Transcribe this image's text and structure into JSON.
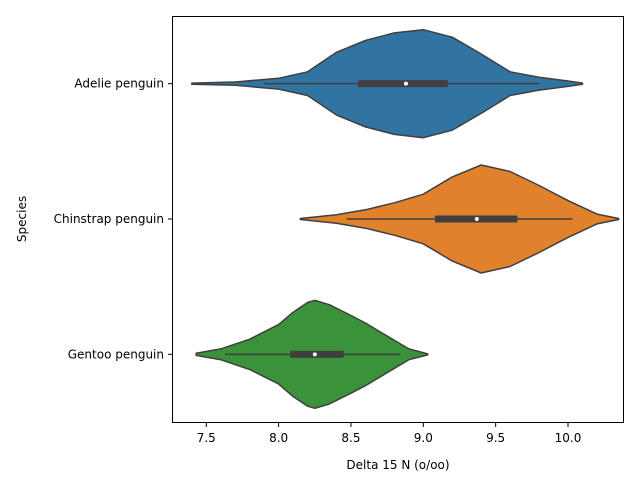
{
  "chart_data": {
    "type": "violin",
    "orientation": "horizontal",
    "xlabel": "Delta 15 N (o/oo)",
    "ylabel": "Species",
    "xlim": [
      7.27,
      10.38
    ],
    "x_ticks": [
      "7.5",
      "8.0",
      "8.5",
      "9.0",
      "9.5",
      "10.0"
    ],
    "categories": [
      "Adelie penguin",
      "Chinstrap penguin",
      "Gentoo penguin"
    ],
    "grid": false,
    "series": [
      {
        "category": "Adelie penguin",
        "color": "#3274a1",
        "range": [
          7.4,
          10.1
        ],
        "whisker": [
          7.9,
          9.8
        ],
        "quartiles": [
          8.55,
          9.17
        ],
        "median": 8.88,
        "density": [
          [
            7.4,
            0.01
          ],
          [
            7.7,
            0.03
          ],
          [
            8.0,
            0.1
          ],
          [
            8.2,
            0.22
          ],
          [
            8.4,
            0.58
          ],
          [
            8.6,
            0.8
          ],
          [
            8.8,
            0.94
          ],
          [
            9.0,
            1.0
          ],
          [
            9.2,
            0.86
          ],
          [
            9.4,
            0.55
          ],
          [
            9.6,
            0.22
          ],
          [
            9.8,
            0.12
          ],
          [
            10.0,
            0.05
          ],
          [
            10.1,
            0.01
          ]
        ]
      },
      {
        "category": "Chinstrap penguin",
        "color": "#e1812c",
        "range": [
          8.15,
          10.35
        ],
        "whisker": [
          8.47,
          10.03
        ],
        "quartiles": [
          9.08,
          9.65
        ],
        "median": 9.37,
        "density": [
          [
            8.15,
            0.01
          ],
          [
            8.4,
            0.08
          ],
          [
            8.6,
            0.17
          ],
          [
            8.8,
            0.3
          ],
          [
            9.0,
            0.46
          ],
          [
            9.2,
            0.78
          ],
          [
            9.4,
            1.0
          ],
          [
            9.6,
            0.88
          ],
          [
            9.8,
            0.62
          ],
          [
            10.0,
            0.34
          ],
          [
            10.2,
            0.09
          ],
          [
            10.35,
            0.01
          ]
        ]
      },
      {
        "category": "Gentoo penguin",
        "color": "#3a923a",
        "range": [
          7.43,
          9.03
        ],
        "whisker": [
          7.63,
          8.84
        ],
        "quartiles": [
          8.08,
          8.45
        ],
        "median": 8.25,
        "density": [
          [
            7.43,
            0.02
          ],
          [
            7.6,
            0.1
          ],
          [
            7.8,
            0.28
          ],
          [
            8.0,
            0.55
          ],
          [
            8.1,
            0.78
          ],
          [
            8.2,
            0.96
          ],
          [
            8.25,
            1.0
          ],
          [
            8.35,
            0.92
          ],
          [
            8.5,
            0.72
          ],
          [
            8.6,
            0.58
          ],
          [
            8.75,
            0.34
          ],
          [
            8.9,
            0.1
          ],
          [
            9.03,
            0.01
          ]
        ]
      }
    ]
  }
}
